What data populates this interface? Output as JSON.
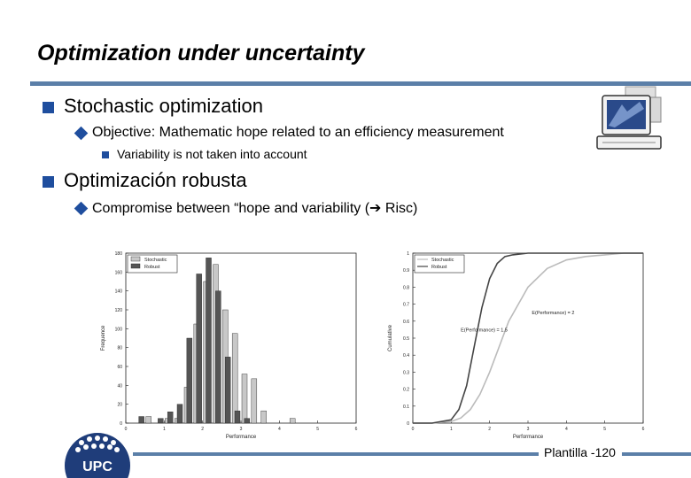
{
  "slide": {
    "title": "Optimization under uncertainty",
    "footer": "Plantilla -120",
    "bullets": {
      "b1": "Stochastic optimization",
      "b1_sub": "Objective: Mathematic hope related to an efficiency measurement",
      "b1_subsub": "Variability is not taken into account",
      "b2": "Optimización robusta",
      "b2_sub_before": "Compromise between “hope and variability (",
      "b2_sub_arrow": "➔",
      "b2_sub_after": " Risc)"
    },
    "logo_text": "UPC",
    "colors": {
      "accent": "#1f4e9e",
      "rule": "#5b7fa8",
      "logo": "#1f3d7a"
    },
    "icons": [
      "computer-icon",
      "upc-logo-icon"
    ]
  },
  "chart_data": [
    {
      "type": "bar",
      "xlabel": "Performance",
      "ylabel": "Frequence",
      "xlim": [
        0,
        6
      ],
      "ylim": [
        0,
        180
      ],
      "xticks": [
        "0",
        "1",
        "2",
        "3",
        "4",
        "5",
        "6"
      ],
      "yticks": [
        "0",
        "20",
        "40",
        "60",
        "80",
        "100",
        "120",
        "140",
        "160",
        "180"
      ],
      "legend": [
        "Stochastic",
        "Robust"
      ],
      "legend_position": "top-left",
      "x": [
        0.5,
        1.0,
        1.25,
        1.5,
        1.75,
        2.0,
        2.25,
        2.5,
        2.75,
        3.0,
        3.25,
        3.5,
        4.25
      ],
      "series": [
        {
          "name": "Stochastic",
          "values": [
            7,
            5,
            5,
            38,
            105,
            150,
            168,
            120,
            95,
            52,
            47,
            13,
            5
          ]
        },
        {
          "name": "Robust",
          "values": [
            7,
            5,
            12,
            20,
            90,
            158,
            175,
            140,
            70,
            13,
            5,
            0,
            0
          ]
        }
      ]
    },
    {
      "type": "line",
      "xlabel": "Performance",
      "ylabel": "Cumulative",
      "xlim": [
        0,
        6
      ],
      "ylim": [
        0,
        1
      ],
      "xticks": [
        "0",
        "1",
        "2",
        "3",
        "4",
        "5",
        "6"
      ],
      "yticks": [
        "0",
        "0.1",
        "0.2",
        "0.3",
        "0.4",
        "0.5",
        "0.6",
        "0.7",
        "0.8",
        "0.9",
        "1"
      ],
      "legend": [
        "Stochastic",
        "Robust"
      ],
      "legend_position": "top-left",
      "annotations": [
        {
          "text": "E(Performance) = 2",
          "x": 3.1,
          "y": 0.64
        },
        {
          "text": "E(Performance) = 1.5",
          "x": 1.25,
          "y": 0.54
        }
      ],
      "series": [
        {
          "name": "Stochastic",
          "x": [
            0,
            0.5,
            1,
            1.25,
            1.5,
            1.75,
            2,
            2.25,
            2.5,
            3,
            3.5,
            4,
            4.5,
            5,
            5.5,
            6
          ],
          "values": [
            0,
            0,
            0.01,
            0.03,
            0.08,
            0.17,
            0.3,
            0.45,
            0.6,
            0.8,
            0.91,
            0.96,
            0.98,
            0.99,
            1,
            1
          ]
        },
        {
          "name": "Robust",
          "x": [
            0,
            0.5,
            1,
            1.2,
            1.4,
            1.6,
            1.8,
            2,
            2.2,
            2.4,
            2.6,
            3,
            4,
            6
          ],
          "values": [
            0,
            0,
            0.02,
            0.08,
            0.22,
            0.45,
            0.68,
            0.85,
            0.94,
            0.98,
            0.99,
            1,
            1,
            1
          ]
        }
      ]
    }
  ]
}
